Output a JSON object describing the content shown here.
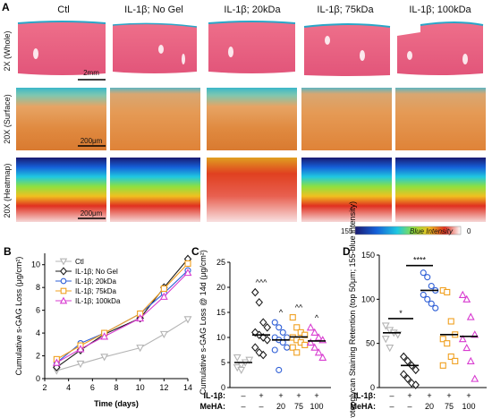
{
  "panel_A": {
    "letter": "A",
    "columns": [
      "Ctl",
      "IL-1β; No Gel",
      "IL-1β; 20kDa",
      "IL-1β; 75kDa",
      "IL-1β; 100kDa"
    ],
    "rows": [
      "2X (Whole)",
      "20X (Surface)",
      "20X (Heatmap)"
    ],
    "scale_whole": "2mm",
    "scale_surface": "200μm",
    "scale_heatmap": "200μm",
    "colorbar": {
      "min": "155",
      "label": "Blue Intensity",
      "max": "0"
    }
  },
  "panel_B": {
    "letter": "B",
    "legend": [
      "Ctl",
      "IL-1β; No Gel",
      "IL-1β; 20kDa",
      "IL-1β; 75kDa",
      "IL-1β; 100kDa"
    ],
    "xlabel": "Time (days)",
    "ylabel": "Cumulative s-GAG Loss (μg/cm²)",
    "xticks": [
      "2",
      "4",
      "6",
      "8",
      "10",
      "12",
      "14"
    ],
    "yticks": [
      "0",
      "2",
      "4",
      "6",
      "8",
      "10"
    ]
  },
  "panel_C": {
    "letter": "C",
    "ylabel": "Cumulative s-GAG Loss @ 14d (μg/cm²)",
    "yticks": [
      "0",
      "5",
      "10",
      "15",
      "20",
      "25"
    ],
    "row_il1b_label": "IL-1β:",
    "row_meha_label": "MeHA:",
    "il1b": [
      "–",
      "+",
      "+",
      "+",
      "+"
    ],
    "meha": [
      "–",
      "–",
      "20",
      "75",
      "100"
    ],
    "sig": [
      "",
      "^^^",
      "^",
      "^^",
      "^"
    ]
  },
  "panel_D": {
    "letter": "D",
    "ylabel": "Proteoglycan Staining Retention (top 50μm; 155-blue intensity)",
    "yticks": [
      "0",
      "50",
      "100",
      "150"
    ],
    "row_il1b_label": "IL-1β:",
    "row_meha_label": "MeHA:",
    "il1b": [
      "–",
      "+",
      "+",
      "+",
      "+"
    ],
    "meha": [
      "–",
      "–",
      "20",
      "75",
      "100"
    ],
    "bracket1": "*",
    "bracket2": "****"
  },
  "colors": {
    "ctl": "#b4b4b4",
    "nogel": "#1a1a1a",
    "k20": "#2f5fd6",
    "k75": "#f0a020",
    "k100": "#d83cd0"
  },
  "chart_data": [
    {
      "type": "line",
      "xlabel": "Time (days)",
      "ylabel": "Cumulative s-GAG Loss (μg/cm²)",
      "xlim": [
        2,
        14
      ],
      "ylim": [
        0,
        11
      ],
      "x": [
        3,
        5,
        7,
        10,
        12,
        14
      ],
      "series": [
        {
          "name": "Ctl",
          "values": [
            0.7,
            1.3,
            1.9,
            2.7,
            3.9,
            5.2
          ]
        },
        {
          "name": "IL-1β; No Gel",
          "values": [
            1.0,
            2.5,
            3.9,
            5.3,
            8.0,
            10.5
          ]
        },
        {
          "name": "IL-1β; 20kDa",
          "values": [
            1.4,
            3.1,
            4.0,
            5.7,
            7.5,
            9.5
          ]
        },
        {
          "name": "IL-1β; 75kDa",
          "values": [
            1.7,
            2.9,
            4.0,
            5.7,
            7.9,
            10.1
          ]
        },
        {
          "name": "IL-1β; 100kDa",
          "values": [
            1.4,
            2.6,
            3.7,
            5.3,
            7.2,
            9.3
          ]
        }
      ]
    },
    {
      "type": "scatter",
      "ylabel": "Cumulative s-GAG Loss @ 14d (μg/cm²)",
      "ylim": [
        0,
        25
      ],
      "categories": [
        "Ctl",
        "No Gel",
        "20",
        "75",
        "100"
      ],
      "means": [
        5.0,
        10.5,
        9.5,
        10.1,
        9.3
      ],
      "points": [
        [
          4.0,
          4.5,
          5.0,
          5.5,
          6.0,
          3.5
        ],
        [
          19.0,
          17.0,
          13.0,
          12.0,
          11.0,
          10.5,
          10.0,
          9.5,
          8.0,
          7.0,
          6.5
        ],
        [
          13.0,
          12.0,
          11.0,
          10.0,
          10.0,
          9.5,
          9.0,
          8.0,
          7.5,
          3.5
        ],
        [
          14.0,
          12.0,
          11.0,
          10.5,
          10.0,
          9.5,
          9.0,
          8.5,
          8.0,
          7.0
        ],
        [
          12.0,
          11.0,
          10.0,
          9.5,
          9.0,
          8.0,
          7.0,
          6.0
        ]
      ]
    },
    {
      "type": "scatter",
      "ylabel": "Proteoglycan Staining Retention (top 50μm; 155-blue intensity)",
      "ylim": [
        0,
        150
      ],
      "categories": [
        "Ctl",
        "No Gel",
        "20",
        "75",
        "100"
      ],
      "means": [
        62,
        25,
        110,
        60,
        58
      ],
      "points": [
        [
          70,
          65,
          62,
          60,
          55,
          45
        ],
        [
          35,
          30,
          25,
          20,
          15,
          10,
          5,
          3
        ],
        [
          130,
          125,
          115,
          110,
          105,
          100,
          95,
          90
        ],
        [
          110,
          108,
          75,
          60,
          55,
          50,
          35,
          30,
          25
        ],
        [
          105,
          100,
          80,
          60,
          55,
          45,
          30,
          10
        ]
      ]
    }
  ]
}
